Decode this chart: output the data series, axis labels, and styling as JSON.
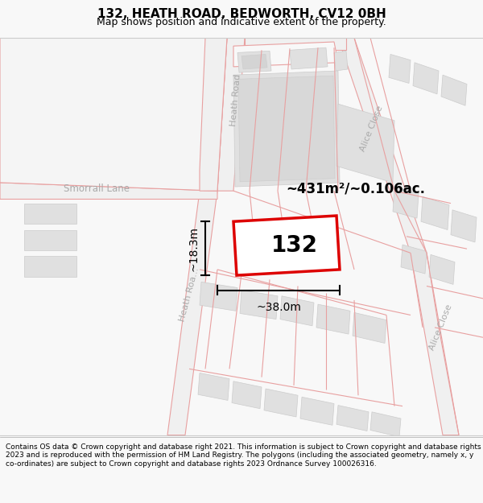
{
  "title": "132, HEATH ROAD, BEDWORTH, CV12 0BH",
  "subtitle": "Map shows position and indicative extent of the property.",
  "footer": "Contains OS data © Crown copyright and database right 2021. This information is subject to Crown copyright and database rights 2023 and is reproduced with the permission of HM Land Registry. The polygons (including the associated geometry, namely x, y co-ordinates) are subject to Crown copyright and database rights 2023 Ordnance Survey 100026316.",
  "area_label": "~431m²/~0.106ac.",
  "property_number": "132",
  "width_label": "~38.0m",
  "height_label": "~18.3m",
  "road_label_heath_top": "Heath Road",
  "road_label_heath_bottom": "Heath Roa…",
  "road_label_alice_top": "Alice Close",
  "road_label_alice_bottom": "Alice Close",
  "road_label_smorrall": "Smorrall Lane",
  "bg_color": "#f8f8f8",
  "map_bg": "#ffffff",
  "property_fill": "#ffffff",
  "property_edge": "#dd0000",
  "building_fill": "#e0e0e0",
  "building_edge": "#cccccc",
  "road_fill": "#f0f0f0",
  "road_line_color": "#e8a0a0",
  "dim_line_color": "#000000",
  "road_label_color": "#aaaaaa",
  "title_fontsize": 11,
  "subtitle_fontsize": 9,
  "footer_fontsize": 6.5
}
